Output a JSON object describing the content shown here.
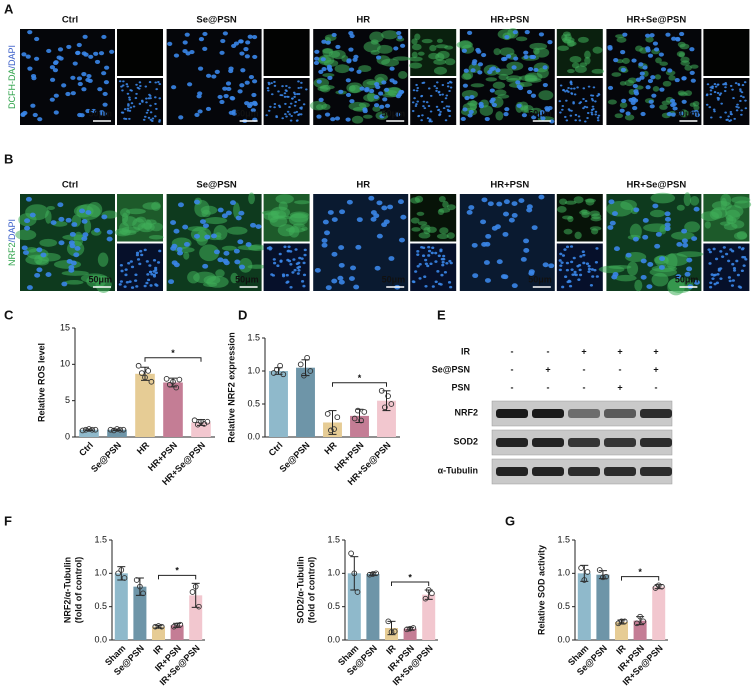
{
  "panel_letters": {
    "A": "A",
    "B": "B",
    "C": "C",
    "D": "D",
    "E": "E",
    "F": "F",
    "G": "G"
  },
  "panel_A": {
    "y_label_parts": [
      "DCFH-DA",
      "/DAPI"
    ],
    "groups": [
      "Ctrl",
      "Se@PSN",
      "HR",
      "HR+PSN",
      "HR+Se@PSN"
    ],
    "scale_bar": "50μm"
  },
  "panel_B": {
    "y_label_parts": [
      "NRF2",
      "/DAPI"
    ],
    "groups": [
      "Ctrl",
      "Se@PSN",
      "HR",
      "HR+PSN",
      "HR+Se@PSN"
    ],
    "scale_bar": "50μm"
  },
  "panel_E": {
    "conditions": [
      {
        "label": "IR",
        "marks": [
          "-",
          "-",
          "+",
          "+",
          "+"
        ]
      },
      {
        "label": "Se@PSN",
        "marks": [
          "-",
          "+",
          "-",
          "-",
          "+"
        ]
      },
      {
        "label": "PSN",
        "marks": [
          "-",
          "-",
          "-",
          "+",
          "-"
        ]
      }
    ],
    "bands": [
      "NRF2",
      "SOD2",
      "α-Tubulin"
    ]
  },
  "chart_data": [
    {
      "type": "bar",
      "y_label": [
        "Relative ROS level"
      ],
      "categories": [
        "Ctrl",
        "Se@PSN",
        "HR",
        "HR+PSN",
        "HR+Se@PSN"
      ],
      "values": [
        1,
        1,
        8.7,
        7.5,
        2
      ],
      "errors": [
        0.1,
        0.1,
        0.9,
        0.6,
        0.4
      ],
      "points": [
        [
          0.9,
          1,
          1.1,
          1,
          1
        ],
        [
          1,
          0.9,
          1.1,
          1,
          1
        ],
        [
          9.8,
          8.8,
          8.2,
          9.1,
          7.6
        ],
        [
          8,
          7.2,
          7.6,
          6.8,
          7.9
        ],
        [
          2.3,
          1.7,
          2.1,
          1.8,
          2.1
        ]
      ],
      "colors": [
        "#8fb9cb",
        "#6e95a8",
        "#e6cc95",
        "#c47d95",
        "#f2c7cf"
      ],
      "ylim": [
        0,
        15
      ],
      "yticks": [
        0,
        5,
        10,
        15
      ],
      "significance": {
        "pair": [
          "HR",
          "HR+Se@PSN"
        ],
        "label": "*"
      }
    },
    {
      "type": "bar",
      "y_label": [
        "Relative NRF2 expression"
      ],
      "categories": [
        "Ctrl",
        "Se@PSN",
        "HR",
        "HR+PSN",
        "HR+Se@PSN"
      ],
      "values": [
        1.0,
        1.05,
        0.22,
        0.32,
        0.55
      ],
      "errors": [
        0.05,
        0.12,
        0.18,
        0.1,
        0.15
      ],
      "points": [
        [
          0.97,
          1.02,
          1.08,
          0.95
        ],
        [
          1.1,
          0.93,
          1.2,
          1.0
        ],
        [
          0.35,
          0.1,
          0.12,
          0.3
        ],
        [
          0.28,
          0.4,
          0.25,
          0.38
        ],
        [
          0.7,
          0.45,
          0.62,
          0.5
        ]
      ],
      "colors": [
        "#8fb9cb",
        "#6e95a8",
        "#e6cc95",
        "#c47d95",
        "#f2c7cf"
      ],
      "ylim": [
        0,
        1.5
      ],
      "yticks": [
        {
          "value": 0,
          "label": "0.0"
        },
        {
          "value": 0.5,
          "label": "0.5"
        },
        {
          "value": 1,
          "label": "1.0"
        },
        {
          "value": 1.5,
          "label": "1.5"
        }
      ],
      "significance": {
        "pair": [
          "HR",
          "HR+Se@PSN"
        ],
        "label": "*"
      }
    },
    {
      "type": "bar",
      "y_label": [
        "NRF2/α-Tubulin",
        "(fold of control)"
      ],
      "categories": [
        "Sham",
        "Se@PSN",
        "IR",
        "IR+PSN",
        "IR+Se@PSN"
      ],
      "values": [
        1.0,
        0.8,
        0.2,
        0.22,
        0.67
      ],
      "errors": [
        0.1,
        0.13,
        0.02,
        0.03,
        0.18
      ],
      "points": [
        [
          1.0,
          1.05,
          0.93
        ],
        [
          0.9,
          0.8,
          0.7
        ],
        [
          0.2,
          0.21,
          0.2
        ],
        [
          0.2,
          0.22,
          0.23
        ],
        [
          0.72,
          0.8,
          0.5
        ]
      ],
      "colors": [
        "#8fb9cb",
        "#6e95a8",
        "#e6cc95",
        "#c47d95",
        "#f2c7cf"
      ],
      "ylim": [
        0,
        1.5
      ],
      "yticks": [
        {
          "value": 0,
          "label": "0.0"
        },
        {
          "value": 0.5,
          "label": "0.5"
        },
        {
          "value": 1,
          "label": "1.0"
        },
        {
          "value": 1.5,
          "label": "1.5"
        }
      ],
      "significance": {
        "pair": [
          "IR",
          "IR+Se@PSN"
        ],
        "label": "*"
      }
    },
    {
      "type": "bar",
      "y_label": [
        "SOD2/α-Tubulin",
        "(fold of control)"
      ],
      "categories": [
        "Sham",
        "Se@PSN",
        "IR",
        "IR+PSN",
        "IR+Se@PSN"
      ],
      "values": [
        1.0,
        0.99,
        0.18,
        0.17,
        0.68
      ],
      "errors": [
        0.25,
        0.02,
        0.1,
        0.02,
        0.07
      ],
      "points": [
        [
          1.3,
          1.0,
          0.72
        ],
        [
          0.98,
          0.99,
          1.0
        ],
        [
          0.28,
          0.12,
          0.13
        ],
        [
          0.16,
          0.17,
          0.18
        ],
        [
          0.62,
          0.75,
          0.7
        ]
      ],
      "colors": [
        "#8fb9cb",
        "#6e95a8",
        "#e6cc95",
        "#c47d95",
        "#f2c7cf"
      ],
      "ylim": [
        0,
        1.5
      ],
      "yticks": [
        {
          "value": 0,
          "label": "0.0"
        },
        {
          "value": 0.5,
          "label": "0.5"
        },
        {
          "value": 1,
          "label": "1.0"
        },
        {
          "value": 1.5,
          "label": "1.5"
        }
      ],
      "significance": {
        "pair": [
          "IR",
          "IR+Se@PSN"
        ],
        "label": "*"
      }
    },
    {
      "type": "bar",
      "y_label": [
        "Relative SOD activity"
      ],
      "categories": [
        "Sham",
        "Se@PSN",
        "IR",
        "IR+PSN",
        "IR+Se@PSN"
      ],
      "values": [
        1.0,
        0.98,
        0.27,
        0.29,
        0.8
      ],
      "errors": [
        0.12,
        0.06,
        0.03,
        0.06,
        0.03
      ],
      "points": [
        [
          1.08,
          0.9,
          1.02
        ],
        [
          1.05,
          0.94,
          0.95
        ],
        [
          0.25,
          0.28,
          0.28
        ],
        [
          0.25,
          0.35,
          0.28
        ],
        [
          0.78,
          0.82,
          0.8
        ]
      ],
      "colors": [
        "#8fb9cb",
        "#6e95a8",
        "#e6cc95",
        "#c47d95",
        "#f2c7cf"
      ],
      "ylim": [
        0,
        1.5
      ],
      "yticks": [
        {
          "value": 0,
          "label": "0.0"
        },
        {
          "value": 0.5,
          "label": "0.5"
        },
        {
          "value": 1,
          "label": "1.0"
        },
        {
          "value": 1.5,
          "label": "1.5"
        }
      ],
      "significance": {
        "pair": [
          "IR",
          "IR+Se@PSN"
        ],
        "label": "*"
      }
    }
  ]
}
